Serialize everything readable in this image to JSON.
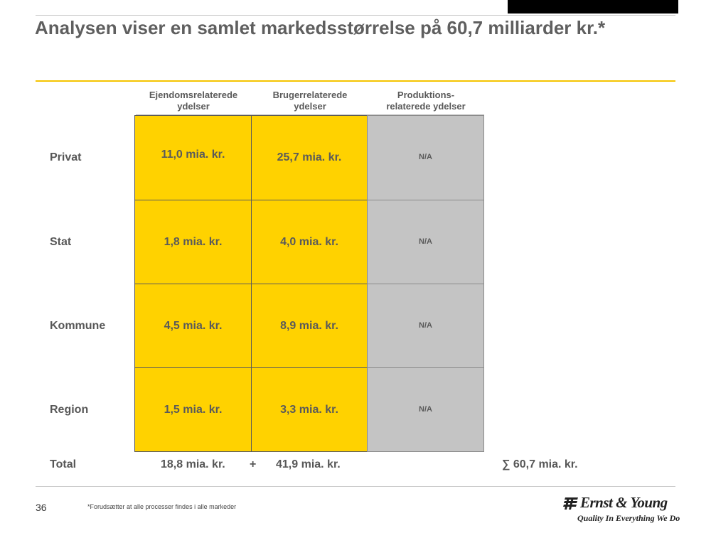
{
  "slide": {
    "title": "Analysen viser en samlet markedsstørrelse på 60,7 milliarder kr.*",
    "page_number": "36",
    "footnote": "*Forudsætter at alle processer findes i alle markeder"
  },
  "table": {
    "columns": [
      "Ejendomsrelaterede\nydelser",
      "Brugerrelaterede\nydelser",
      "Produktions-\nrelaterede ydelser"
    ],
    "rows": [
      {
        "label": "Privat",
        "values": [
          "11,0 mia. kr.",
          "25,7 mia. kr.",
          "N/A"
        ]
      },
      {
        "label": "Stat",
        "values": [
          "1,8 mia. kr.",
          "4,0 mia. kr.",
          "N/A"
        ]
      },
      {
        "label": "Kommune",
        "values": [
          "4,5 mia. kr.",
          "8,9 mia. kr.",
          "N/A"
        ]
      },
      {
        "label": "Region",
        "values": [
          "1,5 mia. kr.",
          "3,3 mia. kr.",
          "N/A"
        ]
      }
    ],
    "total": {
      "label": "Total",
      "col1": "18,8 mia. kr.",
      "plus": "+",
      "col2": "41,9 mia. kr.",
      "sum": "∑ 60,7 mia. kr."
    }
  },
  "logo": {
    "name": "Ernst & Young",
    "tagline": "Quality In Everything We Do"
  },
  "colors": {
    "accent_yellow": "#ffd200",
    "na_grey": "#c4c4c4",
    "text_grey": "#575757"
  }
}
